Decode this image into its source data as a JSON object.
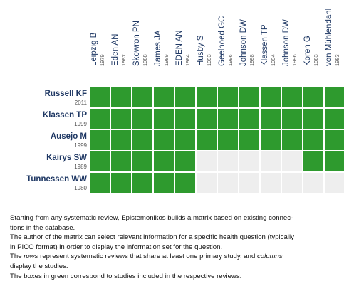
{
  "matrix": {
    "columns": [
      {
        "name": "Leipzig B",
        "year": "1979"
      },
      {
        "name": "Eden AN",
        "year": "1987"
      },
      {
        "name": "Skowron PN",
        "year": "1988"
      },
      {
        "name": "James JA",
        "year": "1989"
      },
      {
        "name": "EDEN AN",
        "year": "1984"
      },
      {
        "name": "Husby S",
        "year": "1993"
      },
      {
        "name": "Geelhoed GC",
        "year": "1996"
      },
      {
        "name": "Johnson DW",
        "year": "1998"
      },
      {
        "name": "Klassen TP",
        "year": "1994"
      },
      {
        "name": "Johnson DW",
        "year": "1996"
      },
      {
        "name": "Koren G",
        "year": "1983"
      },
      {
        "name": "von Mühlendahl",
        "year": "1983"
      }
    ],
    "rows": [
      {
        "name": "Russell KF",
        "year": "2011",
        "cells": [
          1,
          1,
          1,
          1,
          1,
          1,
          1,
          1,
          1,
          1,
          1,
          1
        ]
      },
      {
        "name": "Klassen TP",
        "year": "1999",
        "cells": [
          1,
          1,
          1,
          1,
          1,
          1,
          1,
          1,
          1,
          1,
          1,
          1
        ]
      },
      {
        "name": "Ausejo M",
        "year": "1999",
        "cells": [
          1,
          1,
          1,
          1,
          1,
          1,
          1,
          1,
          1,
          1,
          1,
          1
        ]
      },
      {
        "name": "Kairys SW",
        "year": "1989",
        "cells": [
          1,
          1,
          1,
          1,
          1,
          0,
          0,
          0,
          0,
          0,
          1,
          1
        ]
      },
      {
        "name": "Tunnessen WW",
        "year": "1980",
        "cells": [
          1,
          1,
          1,
          1,
          1,
          0,
          0,
          0,
          0,
          0,
          0,
          0
        ]
      }
    ]
  },
  "notes": [
    [
      "Starting from any systematic review, Epistemonikos builds a matrix based on existing connec-"
    ],
    [
      "tions in the database."
    ],
    [
      "The author of the matrix can select relevant information for a specific health question (typically"
    ],
    [
      "in PICO format) in order to display the information set for the question."
    ],
    [
      "The ",
      "rows",
      " represent systematic reviews that share at least one primary study, and ",
      "columns"
    ],
    [
      "display the studies."
    ],
    [
      "The boxes in green correspond to studies included in the respective reviews."
    ]
  ]
}
